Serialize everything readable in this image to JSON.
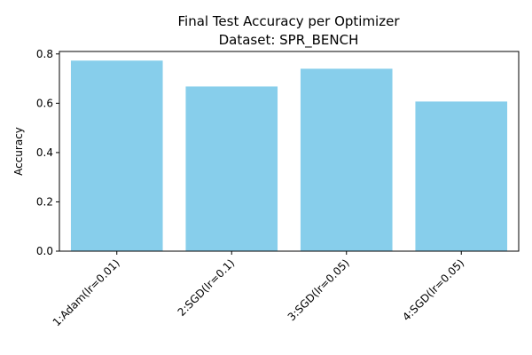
{
  "chart_data": {
    "type": "bar",
    "title": "Final Test Accuracy per Optimizer",
    "subtitle": "Dataset: SPR_BENCH",
    "xlabel": "",
    "ylabel": "Accuracy",
    "categories": [
      "1:Adam(lr=0.01)",
      "2:SGD(lr=0.1)",
      "3:SGD(lr=0.05)",
      "4:SGD(lr=0.05)"
    ],
    "values": [
      0.773,
      0.668,
      0.74,
      0.607
    ],
    "ylim": [
      0,
      0.81
    ],
    "yticks": [
      "0.0",
      "0.2",
      "0.4",
      "0.6",
      "0.8"
    ],
    "bar_color": "#87ceeb",
    "grid": false,
    "legend": "none"
  }
}
